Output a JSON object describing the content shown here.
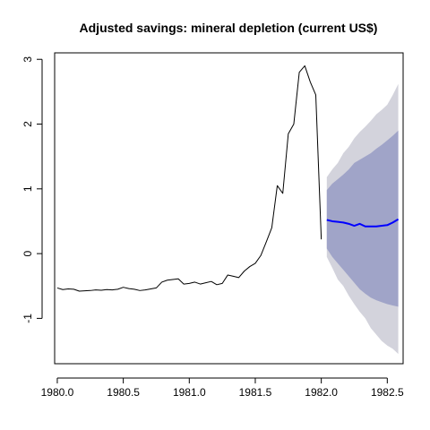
{
  "chart_data": {
    "type": "line",
    "title": "Adjusted savings: mineral depletion (current US$)",
    "xlabel": "",
    "ylabel": "",
    "xlim": [
      1979.98,
      1982.62
    ],
    "ylim": [
      -1.7,
      3.1
    ],
    "x_ticks": [
      1980.0,
      1980.5,
      1981.0,
      1981.5,
      1982.0,
      1982.5
    ],
    "x_tick_labels": [
      "1980.0",
      "1980.5",
      "1981.0",
      "1981.5",
      "1982.0",
      "1982.5"
    ],
    "y_ticks": [
      -1,
      0,
      1,
      2,
      3
    ],
    "y_tick_labels": [
      "-1",
      "0",
      "1",
      "2",
      "3"
    ],
    "grid": false,
    "legend": "none",
    "series": [
      {
        "role": "observed",
        "color": "#000000",
        "x": [
          1980.0,
          1980.0417,
          1980.0833,
          1980.125,
          1980.1667,
          1980.2083,
          1980.25,
          1980.2917,
          1980.3333,
          1980.375,
          1980.4167,
          1980.4583,
          1980.5,
          1980.5417,
          1980.5833,
          1980.625,
          1980.6667,
          1980.7083,
          1980.75,
          1980.7917,
          1980.8333,
          1980.875,
          1980.9167,
          1980.9583,
          1981.0,
          1981.0417,
          1981.0833,
          1981.125,
          1981.1667,
          1981.2083,
          1981.25,
          1981.2917,
          1981.3333,
          1981.375,
          1981.4167,
          1981.4583,
          1981.5,
          1981.5417,
          1981.5833,
          1981.625,
          1981.6667,
          1981.7083,
          1981.75,
          1981.7917,
          1981.8333,
          1981.875,
          1981.9167,
          1981.9583,
          1982.0
        ],
        "y": [
          -0.53,
          -0.555,
          -0.545,
          -0.55,
          -0.58,
          -0.575,
          -0.57,
          -0.56,
          -0.565,
          -0.555,
          -0.56,
          -0.55,
          -0.52,
          -0.54,
          -0.55,
          -0.57,
          -0.56,
          -0.545,
          -0.53,
          -0.44,
          -0.41,
          -0.4,
          -0.39,
          -0.47,
          -0.46,
          -0.44,
          -0.47,
          -0.45,
          -0.43,
          -0.48,
          -0.46,
          -0.33,
          -0.35,
          -0.37,
          -0.27,
          -0.2,
          -0.15,
          -0.03,
          0.18,
          0.4,
          1.05,
          0.93,
          1.85,
          2.0,
          2.8,
          2.9,
          2.65,
          2.45,
          0.22
        ]
      },
      {
        "role": "forecast",
        "color": "#0000ff",
        "x": [
          1982.0417,
          1982.0833,
          1982.125,
          1982.1667,
          1982.2083,
          1982.25,
          1982.2917,
          1982.3333,
          1982.375,
          1982.4167,
          1982.4583,
          1982.5,
          1982.5417,
          1982.5833
        ],
        "y": [
          0.52,
          0.5,
          0.49,
          0.48,
          0.46,
          0.43,
          0.46,
          0.42,
          0.42,
          0.42,
          0.43,
          0.44,
          0.48,
          0.53
        ]
      }
    ],
    "bands": [
      {
        "level": "95",
        "color": "#d3d3dc",
        "x": [
          1982.0417,
          1982.0833,
          1982.125,
          1982.1667,
          1982.2083,
          1982.25,
          1982.2917,
          1982.3333,
          1982.375,
          1982.4167,
          1982.4583,
          1982.5,
          1982.5417,
          1982.5833
        ],
        "lower": [
          -0.05,
          -0.22,
          -0.4,
          -0.5,
          -0.65,
          -0.78,
          -0.9,
          -1.0,
          -1.15,
          -1.25,
          -1.35,
          -1.42,
          -1.47,
          -1.55
        ],
        "upper": [
          1.18,
          1.3,
          1.4,
          1.55,
          1.65,
          1.78,
          1.88,
          1.96,
          2.05,
          2.15,
          2.22,
          2.3,
          2.45,
          2.62
        ]
      },
      {
        "level": "80",
        "color": "#a0a4c8",
        "x": [
          1982.0417,
          1982.0833,
          1982.125,
          1982.1667,
          1982.2083,
          1982.25,
          1982.2917,
          1982.3333,
          1982.375,
          1982.4167,
          1982.4583,
          1982.5,
          1982.5417,
          1982.5833
        ],
        "lower": [
          0.08,
          -0.05,
          -0.15,
          -0.25,
          -0.35,
          -0.45,
          -0.55,
          -0.62,
          -0.68,
          -0.72,
          -0.75,
          -0.78,
          -0.8,
          -0.82
        ],
        "upper": [
          0.98,
          1.08,
          1.15,
          1.22,
          1.3,
          1.4,
          1.45,
          1.5,
          1.55,
          1.62,
          1.68,
          1.75,
          1.82,
          1.9
        ]
      }
    ]
  }
}
